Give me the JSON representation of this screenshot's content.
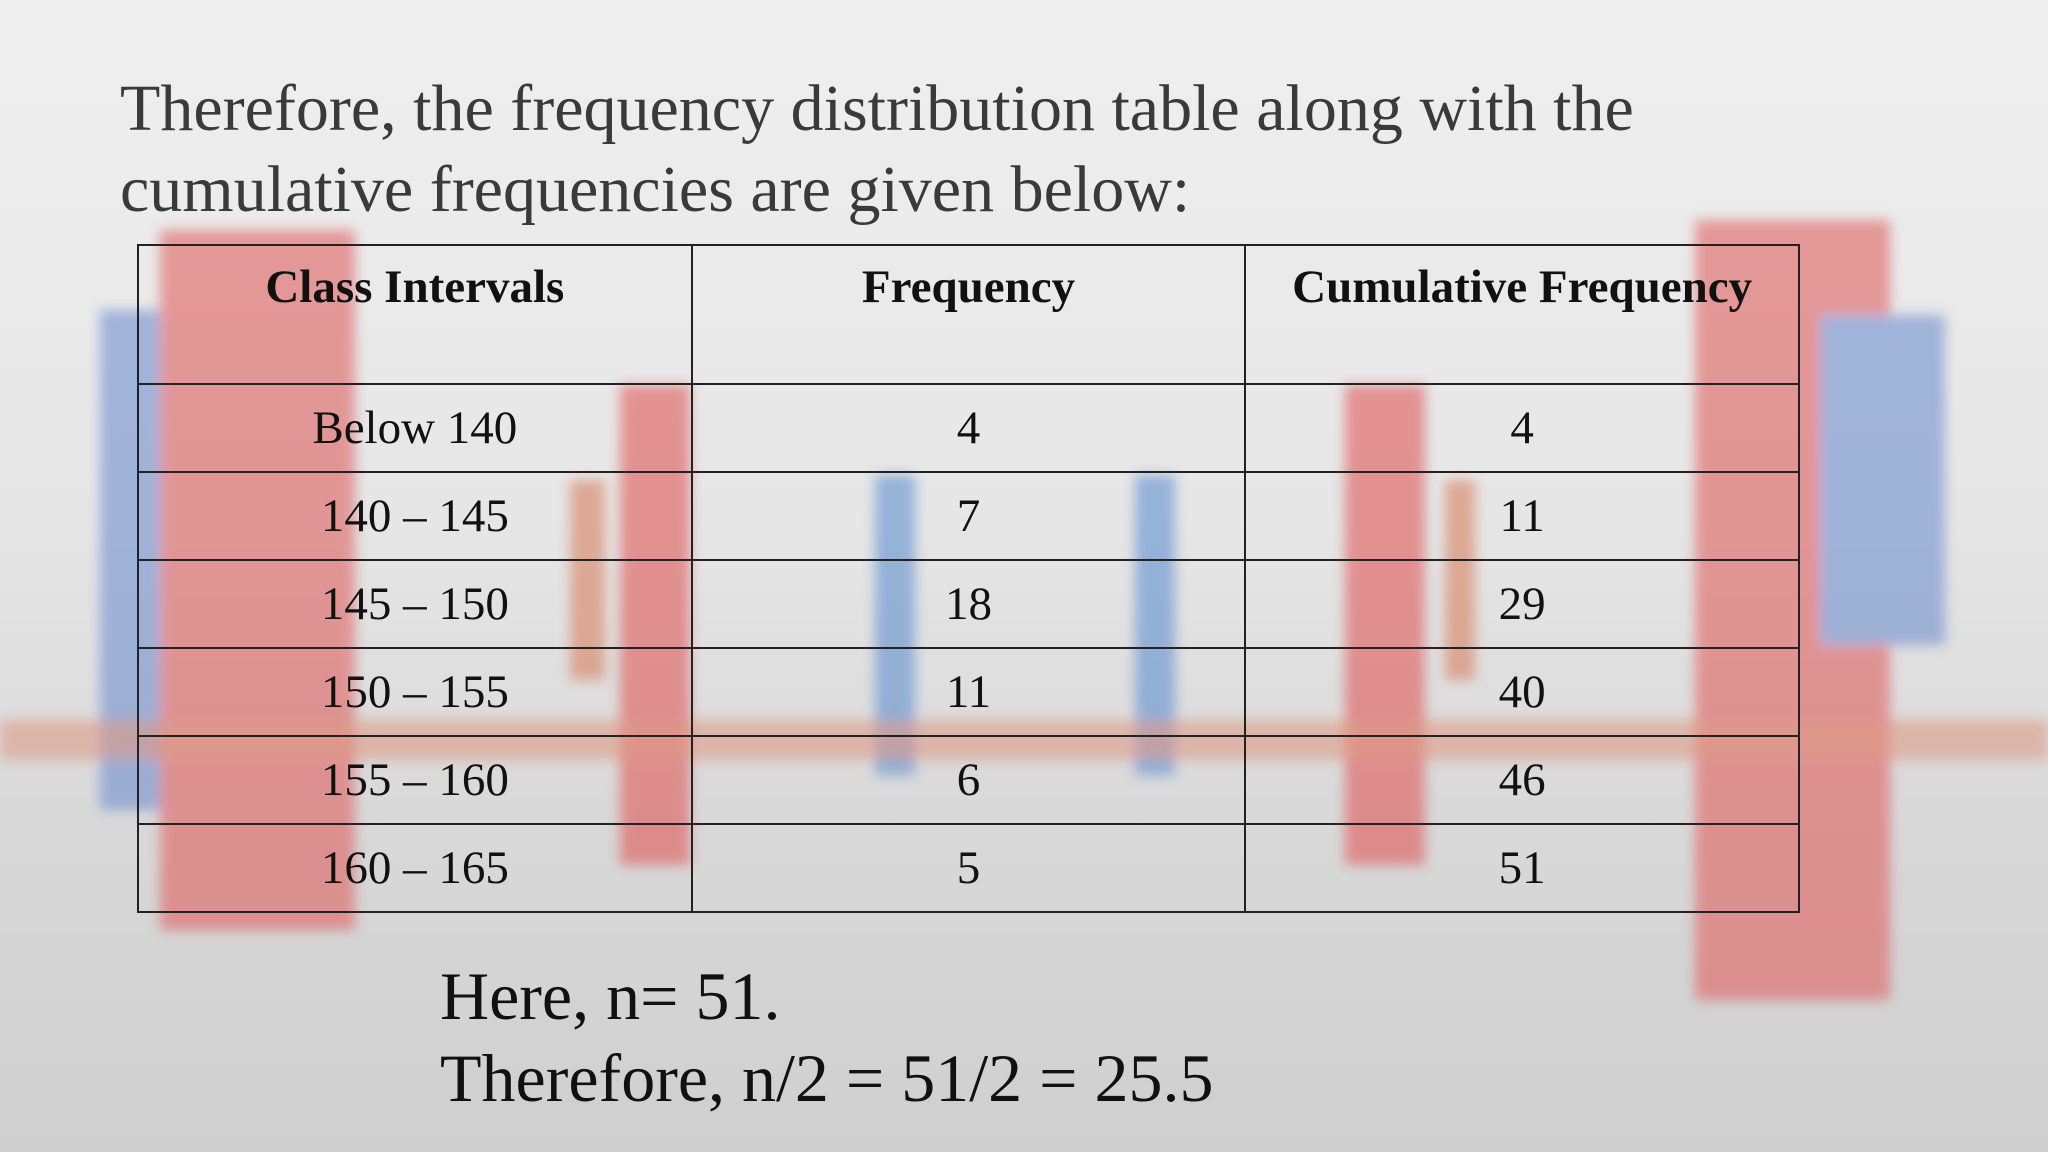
{
  "heading": {
    "lines": [
      "Therefore, the frequency distribution table along with the",
      "cumulative frequencies are given below:"
    ]
  },
  "table": {
    "columns": [
      "Class Intervals",
      "Frequency",
      "Cumulative Frequency"
    ],
    "rows": [
      [
        "Below 140",
        4,
        4
      ],
      [
        "140 – 145",
        7,
        11
      ],
      [
        "145 – 150",
        18,
        29
      ],
      [
        "150 – 155",
        11,
        40
      ],
      [
        "155 – 160",
        6,
        46
      ],
      [
        "160 – 165",
        5,
        51
      ]
    ]
  },
  "footer": {
    "lines": [
      "Here, n= 51.",
      "Therefore, n/2 = 51/2 = 25.5"
    ]
  }
}
